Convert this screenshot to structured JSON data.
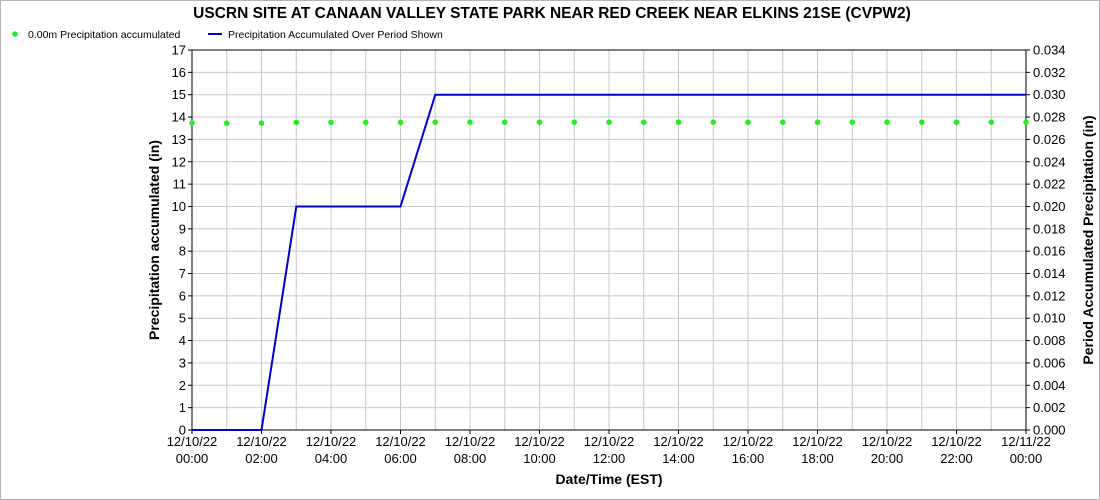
{
  "chart_data": {
    "type": "line",
    "title": "USCRN SITE AT CANAAN VALLEY STATE PARK NEAR RED CREEK NEAR ELKINS 21SE (CVPW2)",
    "xlabel": "Date/Time (EST)",
    "ylabel_left": "Precipitation accumulated (in)",
    "ylabel_right": "Period Accumulated Precipitation (in)",
    "ylim_left": [
      0,
      17
    ],
    "ylim_right": [
      0,
      0.034
    ],
    "xlim": [
      "12/10/22 00:00",
      "12/11/22 00:00"
    ],
    "grid": true,
    "legend_position": "top-left",
    "y_ticks_left": [
      "0",
      "1",
      "2",
      "3",
      "4",
      "5",
      "6",
      "7",
      "8",
      "9",
      "10",
      "11",
      "12",
      "13",
      "14",
      "15",
      "16",
      "17"
    ],
    "y_ticks_right": [
      "0.000",
      "0.002",
      "0.004",
      "0.006",
      "0.008",
      "0.010",
      "0.012",
      "0.014",
      "0.016",
      "0.018",
      "0.020",
      "0.022",
      "0.024",
      "0.026",
      "0.028",
      "0.030",
      "0.032",
      "0.034"
    ],
    "x_ticks": [
      {
        "date": "12/10/22",
        "time": "00:00"
      },
      {
        "date": "12/10/22",
        "time": "02:00"
      },
      {
        "date": "12/10/22",
        "time": "04:00"
      },
      {
        "date": "12/10/22",
        "time": "06:00"
      },
      {
        "date": "12/10/22",
        "time": "08:00"
      },
      {
        "date": "12/10/22",
        "time": "10:00"
      },
      {
        "date": "12/10/22",
        "time": "12:00"
      },
      {
        "date": "12/10/22",
        "time": "14:00"
      },
      {
        "date": "12/10/22",
        "time": "16:00"
      },
      {
        "date": "12/10/22",
        "time": "18:00"
      },
      {
        "date": "12/10/22",
        "time": "20:00"
      },
      {
        "date": "12/10/22",
        "time": "22:00"
      },
      {
        "date": "12/11/22",
        "time": "00:00"
      }
    ],
    "series": [
      {
        "name": "0.00m Precipitation accumulated",
        "kind": "scatter",
        "axis": "left",
        "color": "#22ee22",
        "x": [
          "12/10/22 00:00",
          "12/10/22 01:00",
          "12/10/22 02:00",
          "12/10/22 03:00",
          "12/10/22 04:00",
          "12/10/22 05:00",
          "12/10/22 06:00",
          "12/10/22 07:00",
          "12/10/22 08:00",
          "12/10/22 09:00",
          "12/10/22 10:00",
          "12/10/22 11:00",
          "12/10/22 12:00",
          "12/10/22 13:00",
          "12/10/22 14:00",
          "12/10/22 15:00",
          "12/10/22 16:00",
          "12/10/22 17:00",
          "12/10/22 18:00",
          "12/10/22 19:00",
          "12/10/22 20:00",
          "12/10/22 21:00",
          "12/10/22 22:00",
          "12/10/22 23:00",
          "12/11/22 00:00"
        ],
        "y": [
          13.74,
          13.72,
          13.73,
          13.76,
          13.76,
          13.76,
          13.76,
          13.77,
          13.77,
          13.77,
          13.77,
          13.77,
          13.77,
          13.77,
          13.77,
          13.77,
          13.77,
          13.77,
          13.77,
          13.77,
          13.77,
          13.77,
          13.77,
          13.77,
          13.77
        ]
      },
      {
        "name": "Precipitation Accumulated Over Period Shown",
        "kind": "line",
        "axis": "right",
        "color": "#0000cc",
        "x": [
          "12/10/22 00:00",
          "12/10/22 02:00",
          "12/10/22 03:00",
          "12/10/22 06:00",
          "12/10/22 07:00",
          "12/11/22 00:00"
        ],
        "y": [
          0.0,
          0.0,
          0.02,
          0.02,
          0.03,
          0.03
        ]
      }
    ]
  }
}
